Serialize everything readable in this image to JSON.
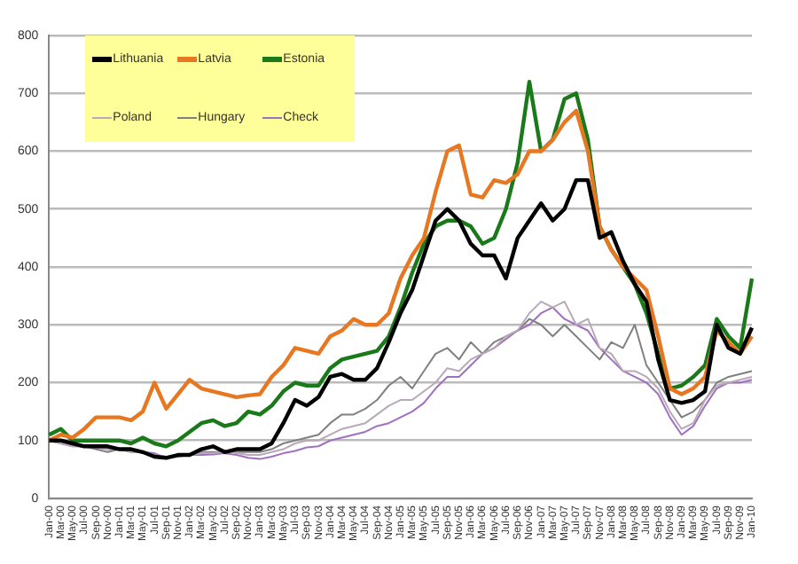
{
  "chart_data": {
    "type": "line",
    "categories": [
      "Jan-00",
      "Mar-00",
      "May-00",
      "Jul-00",
      "Sep-00",
      "Nov-00",
      "Jan-01",
      "Mar-01",
      "May-01",
      "Jul-01",
      "Sep-01",
      "Nov-01",
      "Jan-02",
      "Mar-02",
      "May-02",
      "Jul-02",
      "Sep-02",
      "Nov-02",
      "Jan-03",
      "Mar-03",
      "May-03",
      "Jul-03",
      "Sep-03",
      "Nov-03",
      "Jan-04",
      "Mar-04",
      "May-04",
      "Jul-04",
      "Sep-04",
      "Nov-04",
      "Jan-05",
      "Mar-05",
      "May-05",
      "Jul-05",
      "Sep-05",
      "Nov-05",
      "Jan-06",
      "Mar-06",
      "May-06",
      "Jul-06",
      "Sep-06",
      "Nov-06",
      "Jan-07",
      "Mar-07",
      "May-07",
      "Jul-07",
      "Sep-07",
      "Nov-07",
      "Jan-08",
      "Mar-08",
      "May-08",
      "Jul-08",
      "Sep-08",
      "Nov-08",
      "Jan-09",
      "Mar-09",
      "May-09",
      "Jul-09",
      "Sep-09",
      "Nov-09",
      "Jan-10"
    ],
    "series": [
      {
        "name": "Lithuania",
        "color": "#000000",
        "values": [
          100,
          100,
          95,
          90,
          90,
          90,
          85,
          85,
          80,
          72,
          70,
          75,
          75,
          85,
          90,
          80,
          85,
          85,
          85,
          95,
          130,
          170,
          160,
          175,
          210,
          215,
          205,
          205,
          225,
          270,
          320,
          360,
          420,
          480,
          500,
          480,
          440,
          420,
          420,
          380,
          450,
          480,
          510,
          480,
          500,
          550,
          550,
          450,
          460,
          410,
          370,
          340,
          240,
          170,
          165,
          170,
          185,
          300,
          260,
          250,
          295
        ]
      },
      {
        "name": "Latvia",
        "color": "#e87722",
        "values": [
          100,
          110,
          105,
          120,
          140,
          140,
          140,
          135,
          150,
          200,
          155,
          180,
          205,
          190,
          185,
          180,
          175,
          178,
          180,
          210,
          230,
          260,
          255,
          250,
          280,
          290,
          310,
          300,
          300,
          320,
          380,
          420,
          450,
          530,
          600,
          610,
          525,
          520,
          550,
          545,
          560,
          600,
          600,
          620,
          650,
          670,
          600,
          470,
          430,
          400,
          380,
          360,
          280,
          190,
          180,
          190,
          210,
          290,
          270,
          250,
          280
        ]
      },
      {
        "name": "Estonia",
        "color": "#1a7a1a",
        "values": [
          110,
          120,
          100,
          100,
          100,
          100,
          100,
          95,
          105,
          95,
          90,
          100,
          115,
          130,
          135,
          125,
          130,
          150,
          145,
          160,
          185,
          200,
          195,
          195,
          225,
          240,
          245,
          250,
          255,
          280,
          330,
          390,
          440,
          470,
          480,
          480,
          470,
          440,
          450,
          500,
          580,
          720,
          600,
          620,
          690,
          700,
          620,
          470,
          430,
          400,
          370,
          320,
          250,
          190,
          195,
          210,
          230,
          310,
          280,
          260,
          380
        ]
      },
      {
        "name": "Poland",
        "color": "#b8a8b8",
        "values": [
          100,
          95,
          90,
          90,
          88,
          85,
          85,
          80,
          80,
          75,
          72,
          75,
          75,
          78,
          78,
          80,
          78,
          75,
          75,
          80,
          85,
          95,
          100,
          100,
          110,
          120,
          125,
          130,
          145,
          160,
          170,
          170,
          185,
          200,
          225,
          220,
          240,
          250,
          260,
          280,
          290,
          320,
          340,
          330,
          340,
          300,
          310,
          260,
          250,
          220,
          220,
          210,
          190,
          150,
          120,
          130,
          170,
          195,
          200,
          205,
          210
        ]
      },
      {
        "name": "Hungary",
        "color": "#808080",
        "values": [
          100,
          95,
          90,
          90,
          85,
          80,
          85,
          80,
          80,
          75,
          70,
          75,
          75,
          80,
          80,
          80,
          80,
          80,
          80,
          85,
          95,
          100,
          105,
          110,
          130,
          145,
          145,
          155,
          170,
          195,
          210,
          190,
          220,
          250,
          260,
          240,
          270,
          250,
          270,
          280,
          290,
          310,
          300,
          280,
          300,
          280,
          260,
          240,
          270,
          260,
          300,
          230,
          200,
          170,
          140,
          150,
          170,
          200,
          210,
          215,
          220
        ]
      },
      {
        "name": "Check",
        "color": "#a070c0",
        "values": [
          100,
          95,
          92,
          90,
          88,
          85,
          85,
          82,
          80,
          78,
          70,
          72,
          75,
          75,
          76,
          78,
          75,
          70,
          68,
          72,
          78,
          82,
          88,
          90,
          100,
          105,
          110,
          115,
          125,
          130,
          140,
          150,
          165,
          190,
          210,
          210,
          230,
          250,
          260,
          275,
          290,
          300,
          320,
          330,
          310,
          300,
          290,
          260,
          240,
          220,
          210,
          200,
          180,
          140,
          110,
          125,
          160,
          190,
          200,
          200,
          205
        ]
      }
    ],
    "ylim": [
      0,
      800
    ],
    "yticks": [
      0,
      100,
      200,
      300,
      400,
      500,
      600,
      700,
      800
    ],
    "grid": "y",
    "legend": "top left",
    "marker": "none",
    "line_style": "solid"
  }
}
